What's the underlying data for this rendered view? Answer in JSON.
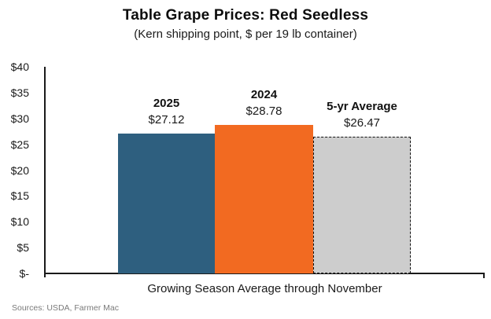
{
  "header": {
    "title": "Table Grape Prices: Red Seedless",
    "subtitle": "(Kern shipping point, $ per 19 lb container)"
  },
  "footer": {
    "source": "Sources: USDA, Farmer Mac"
  },
  "chart_data": {
    "type": "bar",
    "title": "Table Grape Prices: Red Seedless",
    "subtitle": "(Kern shipping point, $ per 19 lb container)",
    "xlabel": "Growing Season Average through November",
    "ylabel": "",
    "categories": [
      "2025",
      "2024",
      "5-yr Average"
    ],
    "values": [
      27.12,
      28.78,
      26.47
    ],
    "value_labels": [
      "$27.12",
      "$28.78",
      "$26.47"
    ],
    "bar_colors": [
      "#2E5F7F",
      "#F26A21",
      "#CDCDCD"
    ],
    "bar_border_styles": [
      "none",
      "none",
      "dashed"
    ],
    "ylim": [
      0,
      40
    ],
    "ytick_values": [
      40,
      35,
      30,
      25,
      20,
      15,
      10,
      5,
      0
    ],
    "ytick_labels": [
      "$40",
      "$35",
      "$30",
      "$25",
      "$20",
      "$15",
      "$10",
      "$5",
      "$-"
    ],
    "gridlines": false,
    "legend": false,
    "source": "Sources: USDA, Farmer Mac"
  }
}
